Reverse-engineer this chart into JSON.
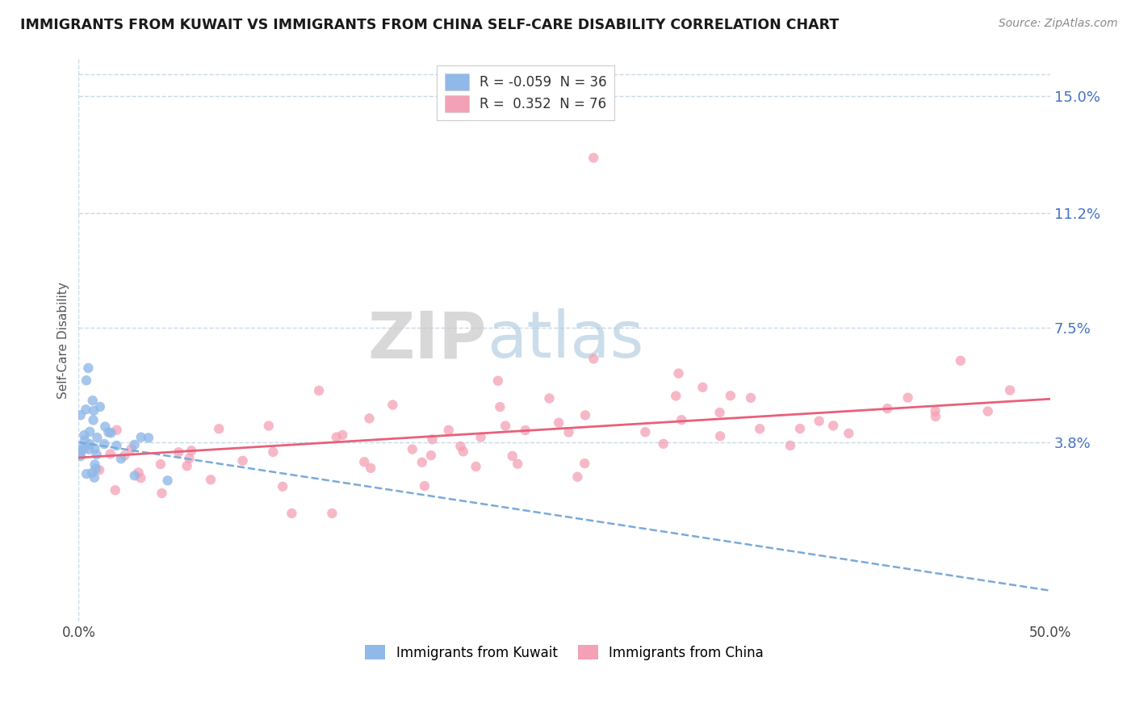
{
  "title": "IMMIGRANTS FROM KUWAIT VS IMMIGRANTS FROM CHINA SELF-CARE DISABILITY CORRELATION CHART",
  "source": "Source: ZipAtlas.com",
  "ylabel": "Self-Care Disability",
  "yticks": [
    0.038,
    0.075,
    0.112,
    0.15
  ],
  "ytick_labels": [
    "3.8%",
    "7.5%",
    "11.2%",
    "15.0%"
  ],
  "xlim": [
    0.0,
    0.5
  ],
  "ylim": [
    -0.02,
    0.162
  ],
  "kuwait_R": -0.059,
  "kuwait_N": 36,
  "china_R": 0.352,
  "china_N": 76,
  "kuwait_color": "#90b8e8",
  "china_color": "#f4a0b5",
  "kuwait_line_color": "#7aaad8",
  "china_line_color": "#e8607a",
  "watermark_zip": "ZIP",
  "watermark_atlas": "atlas",
  "background_color": "#ffffff",
  "grid_color": "#c8d8e8",
  "legend_kuwait_label": "R = -0.059  N = 36",
  "legend_china_label": "R =  0.352  N = 76",
  "bottom_legend_kuwait": "Immigrants from Kuwait",
  "bottom_legend_china": "Immigrants from China"
}
